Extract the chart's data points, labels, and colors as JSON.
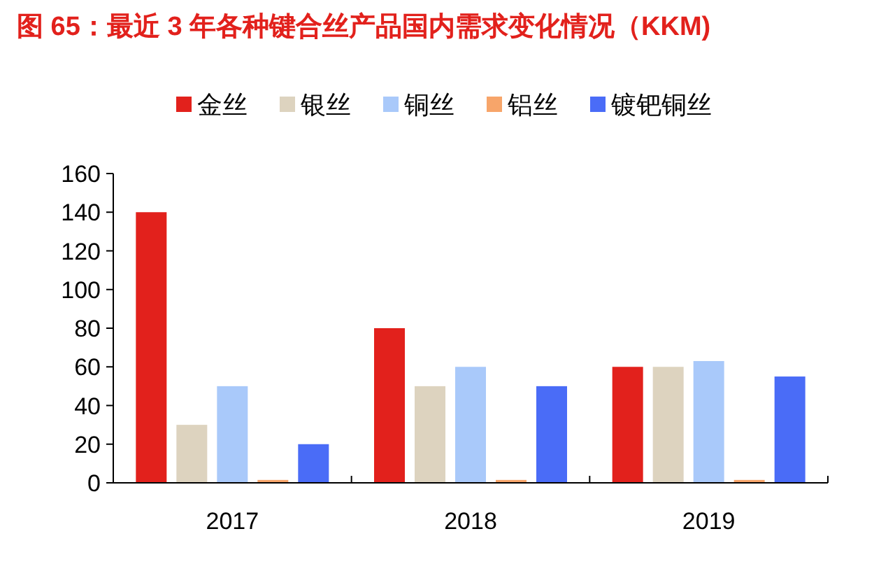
{
  "chart_data": {
    "type": "bar",
    "title": "图 65：最近 3 年各种键合丝产品国内需求变化情况（KKM)",
    "categories": [
      "2017",
      "2018",
      "2019"
    ],
    "series": [
      {
        "name": "金丝",
        "color": "#e2211c",
        "values": [
          140,
          80,
          60
        ]
      },
      {
        "name": "银丝",
        "color": "#ddd3bf",
        "values": [
          30,
          50,
          60
        ]
      },
      {
        "name": "铜丝",
        "color": "#a9c9fa",
        "values": [
          50,
          60,
          63
        ]
      },
      {
        "name": "铝丝",
        "color": "#f7a56a",
        "values": [
          1.5,
          1.5,
          1.5
        ]
      },
      {
        "name": "镀钯铜丝",
        "color": "#4a6cf7",
        "values": [
          20,
          50,
          55
        ]
      }
    ],
    "ylim": [
      0,
      160
    ],
    "yticks": [
      0,
      20,
      40,
      60,
      80,
      100,
      120,
      140,
      160
    ],
    "legend": "top",
    "grid": false
  }
}
